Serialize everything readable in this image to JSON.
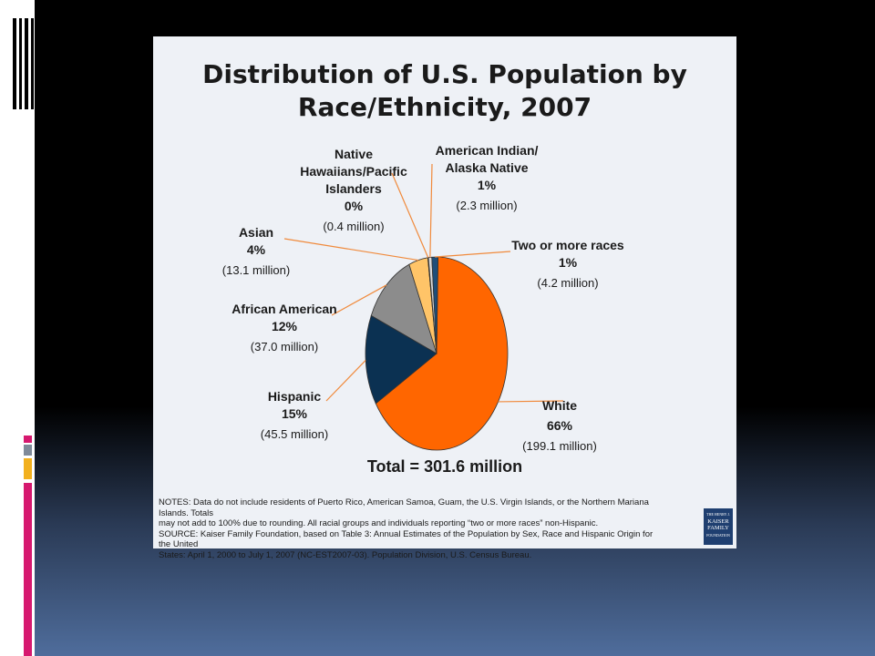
{
  "colors": {
    "accent_magenta": "#d6186f",
    "accent_gray": "#7f8a99",
    "accent_yellow": "#f2b01e"
  },
  "slide": {
    "logo": {
      "line1": "THE HENRY J.",
      "line2": "KAISER",
      "line3": "FAMILY",
      "line4": "FOUNDATION"
    }
  },
  "chart_data": {
    "type": "pie",
    "title": "Distribution of U.S. Population by Race/Ethnicity, 2007",
    "title_lines": [
      "Distribution of U.S. Population by",
      "Race/Ethnicity, 2007"
    ],
    "total_label": "Total = 301.6 million",
    "slices": [
      {
        "name": "White",
        "percent_label": "66%",
        "value_millions": 199.1,
        "millions_label": "(199.1 million)",
        "color": "#ff6600"
      },
      {
        "name": "Hispanic",
        "percent_label": "15%",
        "value_millions": 45.5,
        "millions_label": "(45.5 million)",
        "color": "#0b3152"
      },
      {
        "name": "African American",
        "percent_label": "12%",
        "value_millions": 37.0,
        "millions_label": "(37.0 million)",
        "color": "#8c8c8c"
      },
      {
        "name": "Asian",
        "percent_label": "4%",
        "value_millions": 13.1,
        "millions_label": "(13.1 million)",
        "color": "#ffc468"
      },
      {
        "name": "Native\nHawaiians/Pacific\nIslanders",
        "percent_label": "0%",
        "value_millions": 0.4,
        "millions_label": "(0.4 million)",
        "color": "#4d7ab0"
      },
      {
        "name": "American Indian/\nAlaska Native",
        "percent_label": "1%",
        "value_millions": 2.3,
        "millions_label": "(2.3 million)",
        "color": "#d9d9d9"
      },
      {
        "name": "Two or more races",
        "percent_label": "1%",
        "value_millions": 4.2,
        "millions_label": "(4.2 million)",
        "color": "#1f4e79"
      }
    ],
    "legend": "none"
  },
  "notes": {
    "line1": "NOTES: Data do not include residents of Puerto Rico, American Samoa, Guam, the U.S. Virgin Islands, or the Northern Mariana Islands. Totals",
    "line2": "may not add to 100% due to rounding.  All racial groups and individuals reporting “two or more races” non-Hispanic.",
    "line3": "SOURCE: Kaiser Family Foundation, based on Table 3:  Annual Estimates of the Population by Sex, Race and Hispanic Origin for the United",
    "line4": "States: April 1, 2000 to July 1, 2007 (NC-EST2007-03).  Population Division, U.S. Census Bureau."
  }
}
